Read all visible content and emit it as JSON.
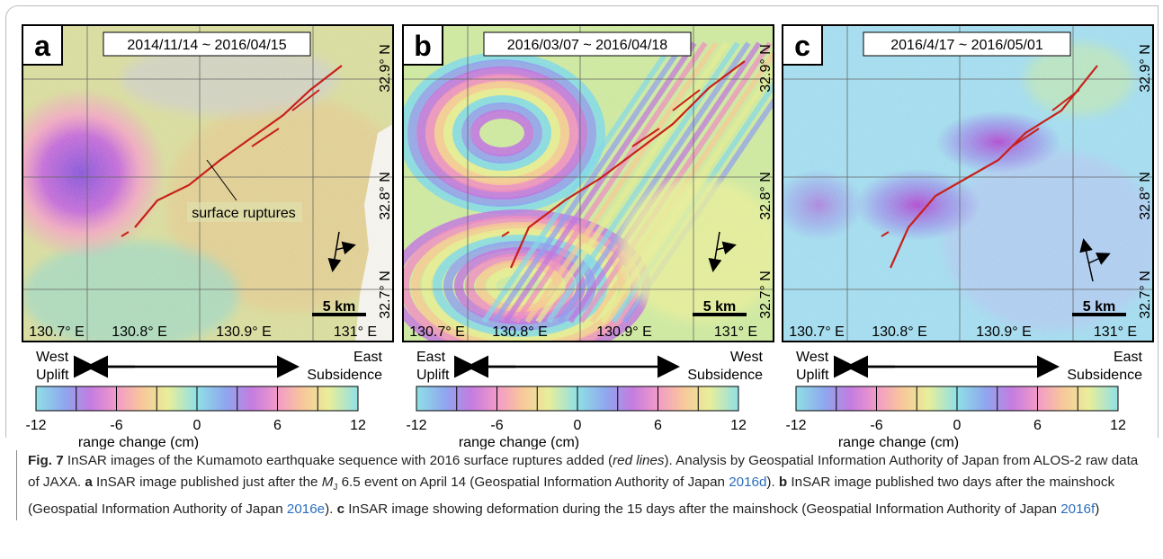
{
  "panels": [
    {
      "letter": "a",
      "date_range": "2014/11/14 ~ 2016/04/15",
      "lat_labels": [
        "32.9° N",
        "32.8° N",
        "32.7° N"
      ],
      "lon_labels": [
        "130.7° E",
        "130.8° E",
        "130.9° E",
        "131° E"
      ],
      "scale": "5 km",
      "annotation": "surface ruptures",
      "left_label": [
        "West",
        "Uplift"
      ],
      "right_label": [
        "East",
        "Subsidence"
      ],
      "colorbar_ticks": [
        "-12",
        "-6",
        "0",
        "6",
        "12"
      ],
      "colorbar_label": "range change (cm)"
    },
    {
      "letter": "b",
      "date_range": "2016/03/07 ~ 2016/04/18",
      "lat_labels": [
        "32.9° N",
        "32.8° N",
        "32.7° N"
      ],
      "lon_labels": [
        "130.7° E",
        "130.8° E",
        "130.9° E",
        "131° E"
      ],
      "scale": "5 km",
      "left_label": [
        "East",
        "Uplift"
      ],
      "right_label": [
        "West",
        "Subsidence"
      ],
      "colorbar_ticks": [
        "-12",
        "-6",
        "0",
        "6",
        "12"
      ],
      "colorbar_label": "range change (cm)"
    },
    {
      "letter": "c",
      "date_range": "2016/4/17 ~ 2016/05/01",
      "lat_labels": [
        "32.9° N",
        "32.8° N",
        "32.7° N"
      ],
      "lon_labels": [
        "130.7° E",
        "130.8° E",
        "130.9° E",
        "131° E"
      ],
      "scale": "5 km",
      "left_label": [
        "West",
        "Uplift"
      ],
      "right_label": [
        "East",
        "Subsidence"
      ],
      "colorbar_ticks": [
        "-12",
        "-6",
        "0",
        "6",
        "12"
      ],
      "colorbar_label": "range change (cm)"
    }
  ],
  "caption": [
    "Fig. 7",
    "  InSAR images of the Kumamoto earthquake sequence with 2016 surface ruptures added (",
    "red lines",
    "). Analysis by Geospatial Information Authority of Japan from ALOS-2 raw data of JAXA. ",
    "a",
    " InSAR image published just after the ",
    "M",
    "J",
    " 6.5 event on April 14 (Geospatial Information Authority of Japan ",
    "2016d",
    "). ",
    "b",
    " InSAR image published two days after the mainshock (Geospatial Information Authority of Japan ",
    "2016e",
    "). ",
    "c",
    " InSAR image showing deformation during the 15 days after the mainshock (Geospatial Information Authority of Japan ",
    "2016f",
    ")"
  ]
}
